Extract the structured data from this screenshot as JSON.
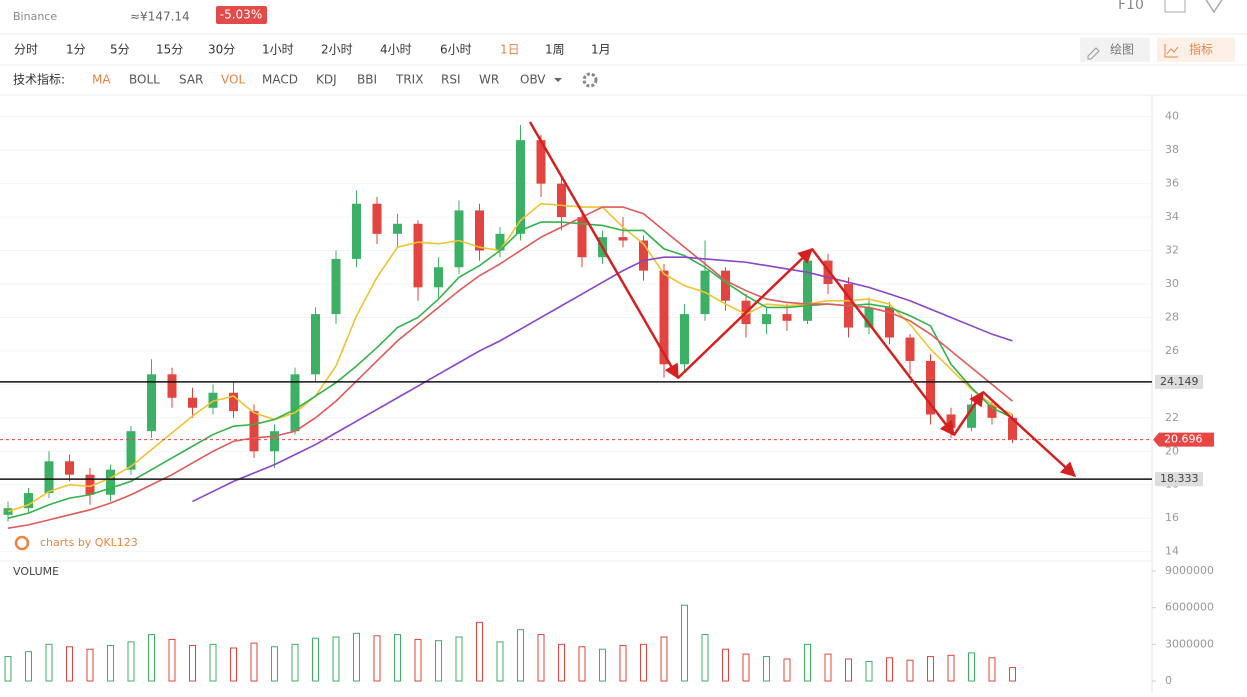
{
  "header": {
    "exchange": "Binance",
    "cny_price": "≈¥147.14",
    "change": "-5.03%",
    "f10": "F10"
  },
  "toolbar": {
    "intervals": [
      {
        "label": "分时",
        "active": false
      },
      {
        "label": "1分",
        "active": false
      },
      {
        "label": "5分",
        "active": false
      },
      {
        "label": "15分",
        "active": false
      },
      {
        "label": "30分",
        "active": false
      },
      {
        "label": "1小时",
        "active": false
      },
      {
        "label": "2小时",
        "active": false
      },
      {
        "label": "4小时",
        "active": false
      },
      {
        "label": "6小时",
        "active": false
      },
      {
        "label": "1日",
        "active": true
      },
      {
        "label": "1周",
        "active": false
      },
      {
        "label": "1月",
        "active": false
      }
    ],
    "draw": "绘图",
    "indicator": "指标",
    "indicator_label": "技术指标:",
    "indicators": [
      {
        "label": "MA",
        "active": true
      },
      {
        "label": "BOLL",
        "active": false
      },
      {
        "label": "SAR",
        "active": false
      },
      {
        "label": "VOL",
        "active": true
      },
      {
        "label": "MACD",
        "active": false
      },
      {
        "label": "KDJ",
        "active": false
      },
      {
        "label": "BBI",
        "active": false
      },
      {
        "label": "TRIX",
        "active": false
      },
      {
        "label": "RSI",
        "active": false
      },
      {
        "label": "WR",
        "active": false
      },
      {
        "label": "OBV",
        "active": false
      }
    ]
  },
  "chart_data": [
    {
      "type": "candlestick",
      "watermark": "charts by QKL123",
      "up_color": "#3cb064",
      "down_color": "#e2453f",
      "ylim": [
        13.5,
        41
      ],
      "yticks": [
        14,
        16,
        18,
        20,
        22,
        24,
        26,
        28,
        30,
        32,
        34,
        36,
        38,
        40
      ],
      "grid": true,
      "price_lines": [
        24.149,
        18.333
      ],
      "last_price": 20.696,
      "last_price_color": "#e84545",
      "ohlc": [
        [
          16.2,
          17.0,
          15.8,
          16.6
        ],
        [
          16.6,
          17.8,
          16.3,
          17.5
        ],
        [
          17.5,
          20.0,
          17.2,
          19.4
        ],
        [
          19.4,
          19.8,
          18.2,
          18.6
        ],
        [
          18.6,
          19.0,
          16.8,
          17.4
        ],
        [
          17.4,
          19.2,
          17.0,
          18.9
        ],
        [
          18.9,
          21.5,
          18.6,
          21.2
        ],
        [
          21.2,
          25.5,
          20.8,
          24.6
        ],
        [
          24.6,
          25.0,
          22.6,
          23.2
        ],
        [
          23.2,
          23.8,
          22.0,
          22.6
        ],
        [
          22.6,
          24.0,
          22.2,
          23.5
        ],
        [
          23.5,
          24.2,
          22.0,
          22.4
        ],
        [
          22.4,
          22.8,
          19.6,
          20.0
        ],
        [
          20.0,
          21.6,
          19.0,
          21.2
        ],
        [
          21.2,
          25.0,
          21.0,
          24.6
        ],
        [
          24.6,
          28.6,
          24.2,
          28.2
        ],
        [
          28.2,
          32.0,
          27.6,
          31.5
        ],
        [
          31.5,
          35.6,
          31.0,
          34.8
        ],
        [
          34.8,
          35.2,
          32.4,
          33.0
        ],
        [
          33.0,
          34.2,
          32.2,
          33.6
        ],
        [
          33.6,
          33.8,
          29.0,
          29.8
        ],
        [
          29.8,
          31.6,
          29.2,
          31.0
        ],
        [
          31.0,
          35.0,
          30.6,
          34.4
        ],
        [
          34.4,
          34.8,
          31.4,
          32.0
        ],
        [
          32.0,
          33.4,
          31.6,
          33.0
        ],
        [
          33.0,
          39.5,
          32.6,
          38.6
        ],
        [
          38.6,
          38.9,
          35.2,
          36.0
        ],
        [
          36.0,
          36.4,
          33.2,
          34.0
        ],
        [
          34.0,
          34.4,
          31.0,
          31.6
        ],
        [
          31.6,
          33.2,
          31.2,
          32.8
        ],
        [
          32.8,
          34.0,
          32.2,
          32.6
        ],
        [
          32.6,
          32.9,
          30.2,
          30.8
        ],
        [
          30.8,
          31.2,
          24.4,
          25.2
        ],
        [
          25.2,
          28.8,
          24.8,
          28.2
        ],
        [
          28.2,
          32.6,
          27.8,
          30.8
        ],
        [
          30.8,
          31.0,
          28.4,
          29.0
        ],
        [
          29.0,
          29.4,
          26.8,
          27.6
        ],
        [
          27.6,
          28.6,
          27.0,
          28.2
        ],
        [
          28.2,
          28.8,
          27.2,
          27.8
        ],
        [
          27.8,
          32.0,
          27.6,
          31.4
        ],
        [
          31.4,
          31.8,
          29.4,
          30.0
        ],
        [
          30.0,
          30.4,
          26.8,
          27.4
        ],
        [
          27.4,
          29.2,
          27.0,
          28.6
        ],
        [
          28.6,
          28.9,
          26.4,
          26.8
        ],
        [
          26.8,
          27.0,
          24.6,
          25.4
        ],
        [
          25.4,
          25.8,
          21.6,
          22.2
        ],
        [
          22.2,
          22.6,
          20.8,
          21.4
        ],
        [
          21.4,
          23.4,
          21.2,
          22.8
        ],
        [
          22.8,
          23.0,
          21.6,
          22.0
        ],
        [
          22.0,
          22.2,
          20.5,
          20.696
        ]
      ],
      "series": [
        {
          "color": "#f0c330",
          "values": [
            16.4,
            16.8,
            17.6,
            18.0,
            17.9,
            18.4,
            19.1,
            20.1,
            21.1,
            22.1,
            23.0,
            23.3,
            22.3,
            21.9,
            22.3,
            23.3,
            25.1,
            28.1,
            30.4,
            32.2,
            32.5,
            32.4,
            32.6,
            32.2,
            32.0,
            33.8,
            34.8,
            34.7,
            34.6,
            34.6,
            33.4,
            32.4,
            30.6,
            29.9,
            29.5,
            28.8,
            28.2,
            28.8,
            28.7,
            28.8,
            29.0,
            29.0,
            29.1,
            28.8,
            27.6,
            26.1,
            24.9,
            23.7,
            22.8,
            22.2
          ]
        },
        {
          "color": "#34b24c",
          "values": [
            16.0,
            16.3,
            16.8,
            17.2,
            17.4,
            17.8,
            18.2,
            18.9,
            19.6,
            20.3,
            21.0,
            21.5,
            21.6,
            21.9,
            22.5,
            23.3,
            24.1,
            25.1,
            26.2,
            27.4,
            28.0,
            29.1,
            30.4,
            31.1,
            32.0,
            33.2,
            33.7,
            33.7,
            33.6,
            33.5,
            33.2,
            33.2,
            32.1,
            31.7,
            31.0,
            30.1,
            29.3,
            28.6,
            28.6,
            28.7,
            28.8,
            28.7,
            28.8,
            28.6,
            28.1,
            27.5,
            25.2,
            23.8,
            22.6,
            22.0
          ]
        },
        {
          "color": "#de5b5b",
          "values": [
            15.4,
            15.6,
            15.9,
            16.2,
            16.5,
            16.9,
            17.4,
            18.0,
            18.6,
            19.3,
            20.0,
            20.6,
            20.8,
            20.9,
            21.2,
            22.0,
            23.0,
            24.2,
            25.4,
            26.6,
            27.6,
            28.6,
            29.6,
            30.5,
            31.2,
            32.0,
            32.8,
            33.4,
            34.0,
            34.6,
            34.6,
            34.2,
            33.2,
            32.2,
            31.2,
            30.2,
            29.6,
            29.1,
            28.9,
            28.8,
            28.8,
            28.7,
            28.6,
            28.3,
            27.8,
            27.0,
            26.0,
            25.0,
            24.0,
            23.0
          ]
        },
        {
          "color": "#8a45c8",
          "values": [
            null,
            null,
            null,
            null,
            null,
            null,
            null,
            null,
            null,
            17.0,
            17.6,
            18.2,
            18.7,
            19.2,
            19.8,
            20.4,
            21.1,
            21.8,
            22.5,
            23.2,
            23.9,
            24.6,
            25.3,
            26.0,
            26.6,
            27.3,
            28.0,
            28.7,
            29.4,
            30.1,
            30.8,
            31.4,
            31.6,
            31.6,
            31.5,
            31.4,
            31.3,
            31.1,
            30.9,
            30.7,
            30.4,
            30.1,
            29.8,
            29.4,
            29.0,
            28.5,
            28.0,
            27.5,
            27.0,
            26.6
          ]
        }
      ]
    },
    {
      "type": "bar",
      "title": "VOLUME",
      "ylim": [
        0,
        9000000
      ],
      "yticks": [
        0,
        3000000,
        6000000,
        9000000
      ],
      "values": [
        2000000,
        2400000,
        3000000,
        2800000,
        2600000,
        2900000,
        3200000,
        3800000,
        3400000,
        2900000,
        3000000,
        2700000,
        3100000,
        2800000,
        3000000,
        3500000,
        3600000,
        3900000,
        3700000,
        3800000,
        3400000,
        3300000,
        3600000,
        4800000,
        3200000,
        4200000,
        3800000,
        3000000,
        2800000,
        2600000,
        2900000,
        3000000,
        3600000,
        6200000,
        3800000,
        2600000,
        2200000,
        2000000,
        1800000,
        3000000,
        2200000,
        1800000,
        1600000,
        1900000,
        1700000,
        2000000,
        2100000,
        2300000,
        1900000,
        1100000
      ]
    }
  ]
}
